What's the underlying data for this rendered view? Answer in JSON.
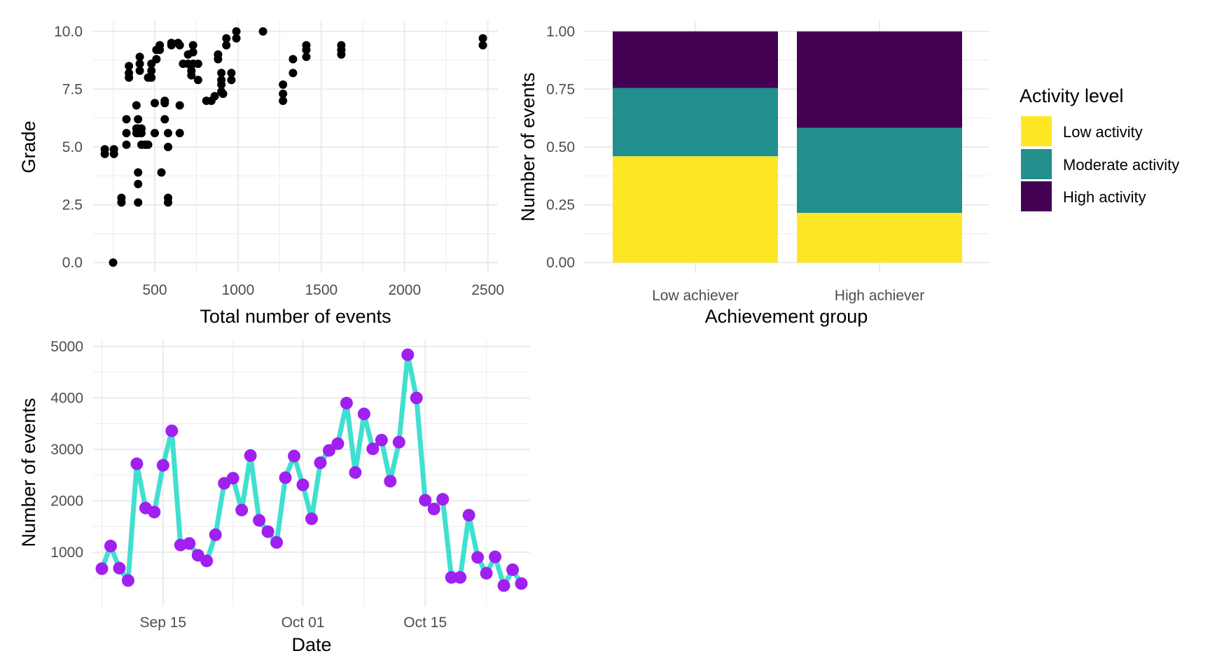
{
  "chart_data": [
    {
      "type": "scatter",
      "title": "",
      "xlabel": "Total number of events",
      "ylabel": "Grade",
      "xlim": [
        130,
        2560
      ],
      "ylim": [
        0,
        10
      ],
      "xticks": [
        500,
        1000,
        1500,
        2000,
        2500
      ],
      "xtick_labels": [
        "500",
        "1000",
        "1500",
        "2000",
        "2500"
      ],
      "yticks": [
        0,
        2.5,
        5,
        7.5,
        10
      ],
      "ytick_labels": [
        "0.0",
        "2.5",
        "5.0",
        "7.5",
        "10.0"
      ],
      "grid": true,
      "point_color": "#000000",
      "points": [
        [
          250,
          0.0
        ],
        [
          200,
          4.9
        ],
        [
          200,
          4.7
        ],
        [
          255,
          4.9
        ],
        [
          255,
          4.7
        ],
        [
          300,
          2.8
        ],
        [
          300,
          2.6
        ],
        [
          330,
          6.2
        ],
        [
          330,
          5.6
        ],
        [
          330,
          5.1
        ],
        [
          345,
          8.5
        ],
        [
          345,
          8.2
        ],
        [
          345,
          8.0
        ],
        [
          390,
          6.8
        ],
        [
          390,
          5.8
        ],
        [
          390,
          5.6
        ],
        [
          400,
          6.2
        ],
        [
          400,
          5.8
        ],
        [
          400,
          5.6
        ],
        [
          400,
          3.9
        ],
        [
          400,
          3.4
        ],
        [
          400,
          2.6
        ],
        [
          410,
          8.9
        ],
        [
          410,
          8.6
        ],
        [
          410,
          8.3
        ],
        [
          420,
          5.8
        ],
        [
          420,
          5.6
        ],
        [
          420,
          5.1
        ],
        [
          440,
          5.1
        ],
        [
          450,
          5.1
        ],
        [
          460,
          5.1
        ],
        [
          460,
          8.0
        ],
        [
          480,
          8.6
        ],
        [
          480,
          8.3
        ],
        [
          480,
          8.0
        ],
        [
          500,
          6.9
        ],
        [
          500,
          5.6
        ],
        [
          510,
          8.8
        ],
        [
          510,
          9.2
        ],
        [
          530,
          9.4
        ],
        [
          530,
          9.2
        ],
        [
          540,
          3.9
        ],
        [
          560,
          7.0
        ],
        [
          560,
          6.9
        ],
        [
          560,
          6.2
        ],
        [
          580,
          5.6
        ],
        [
          580,
          5.0
        ],
        [
          580,
          2.8
        ],
        [
          580,
          2.6
        ],
        [
          600,
          9.5
        ],
        [
          600,
          9.4
        ],
        [
          640,
          9.5
        ],
        [
          650,
          9.4
        ],
        [
          650,
          6.8
        ],
        [
          650,
          5.6
        ],
        [
          670,
          8.6
        ],
        [
          700,
          9.0
        ],
        [
          700,
          8.6
        ],
        [
          720,
          8.3
        ],
        [
          720,
          8.1
        ],
        [
          730,
          9.4
        ],
        [
          730,
          9.1
        ],
        [
          730,
          8.6
        ],
        [
          760,
          8.6
        ],
        [
          760,
          7.9
        ],
        [
          810,
          7.0
        ],
        [
          840,
          7.0
        ],
        [
          860,
          7.2
        ],
        [
          880,
          9.0
        ],
        [
          880,
          8.8
        ],
        [
          900,
          8.2
        ],
        [
          900,
          7.9
        ],
        [
          900,
          7.7
        ],
        [
          900,
          7.4
        ],
        [
          910,
          7.3
        ],
        [
          930,
          9.7
        ],
        [
          930,
          9.4
        ],
        [
          960,
          8.2
        ],
        [
          960,
          7.9
        ],
        [
          990,
          10.0
        ],
        [
          990,
          9.7
        ],
        [
          1150,
          10.0
        ],
        [
          1270,
          7.7
        ],
        [
          1270,
          7.3
        ],
        [
          1270,
          7.0
        ],
        [
          1330,
          8.2
        ],
        [
          1330,
          8.8
        ],
        [
          1410,
          9.4
        ],
        [
          1410,
          9.2
        ],
        [
          1410,
          8.9
        ],
        [
          1620,
          9.4
        ],
        [
          1620,
          9.2
        ],
        [
          1620,
          9.0
        ],
        [
          2470,
          9.7
        ],
        [
          2470,
          9.4
        ]
      ]
    },
    {
      "type": "bar",
      "stacked": true,
      "title": "",
      "xlabel": "Achievement group",
      "ylabel": "Number of events",
      "ylim": [
        0,
        1
      ],
      "yticks": [
        0,
        0.25,
        0.5,
        0.75,
        1.0
      ],
      "ytick_labels": [
        "0.00",
        "0.25",
        "0.50",
        "0.75",
        "1.00"
      ],
      "grid": true,
      "categories": [
        "Low achiever",
        "High achiever"
      ],
      "legend_title": "Activity level",
      "legend_position": "right",
      "series": [
        {
          "name": "Low activity",
          "color": "#FDE725",
          "values": [
            0.46,
            0.215
          ]
        },
        {
          "name": "Moderate activity",
          "color": "#21908C",
          "values": [
            0.295,
            0.368
          ]
        },
        {
          "name": "High activity",
          "color": "#440154",
          "values": [
            0.245,
            0.417
          ]
        }
      ]
    },
    {
      "type": "line",
      "title": "",
      "xlabel": "Date",
      "ylabel": "Number of events",
      "xlim": [
        "2023-09-07",
        "2023-10-27"
      ],
      "ylim": [
        -50,
        5150
      ],
      "xticks": [
        "2023-09-15",
        "2023-10-01",
        "2023-10-15"
      ],
      "xtick_labels": [
        "Sep 15",
        "Oct 01",
        "Oct 15"
      ],
      "yticks": [
        1000,
        2000,
        3000,
        4000,
        5000
      ],
      "ytick_labels": [
        "1000",
        "2000",
        "3000",
        "4000",
        "5000"
      ],
      "grid": true,
      "line_color": "#40E0D0",
      "point_color": "#A020F0",
      "x": [
        "2023-09-08",
        "2023-09-09",
        "2023-09-10",
        "2023-09-11",
        "2023-09-12",
        "2023-09-13",
        "2023-09-14",
        "2023-09-15",
        "2023-09-16",
        "2023-09-17",
        "2023-09-18",
        "2023-09-19",
        "2023-09-20",
        "2023-09-21",
        "2023-09-22",
        "2023-09-23",
        "2023-09-24",
        "2023-09-25",
        "2023-09-26",
        "2023-09-27",
        "2023-09-28",
        "2023-09-29",
        "2023-09-30",
        "2023-10-01",
        "2023-10-02",
        "2023-10-03",
        "2023-10-04",
        "2023-10-05",
        "2023-10-06",
        "2023-10-07",
        "2023-10-08",
        "2023-10-09",
        "2023-10-10",
        "2023-10-11",
        "2023-10-12",
        "2023-10-13",
        "2023-10-14",
        "2023-10-15",
        "2023-10-16",
        "2023-10-17",
        "2023-10-18",
        "2023-10-19",
        "2023-10-20",
        "2023-10-21",
        "2023-10-22",
        "2023-10-23",
        "2023-10-24",
        "2023-10-25",
        "2023-10-26"
      ],
      "y": [
        680,
        1120,
        690,
        450,
        2720,
        1860,
        1780,
        2690,
        3360,
        1140,
        1170,
        940,
        830,
        1340,
        2340,
        2440,
        1820,
        2880,
        1620,
        1400,
        1190,
        2450,
        2870,
        2310,
        1650,
        2740,
        2980,
        3110,
        3900,
        2550,
        3690,
        3010,
        3180,
        2380,
        3140,
        4840,
        4000,
        2010,
        1840,
        2030,
        510,
        510,
        1720,
        900,
        590,
        910,
        350,
        660,
        390
      ]
    }
  ]
}
